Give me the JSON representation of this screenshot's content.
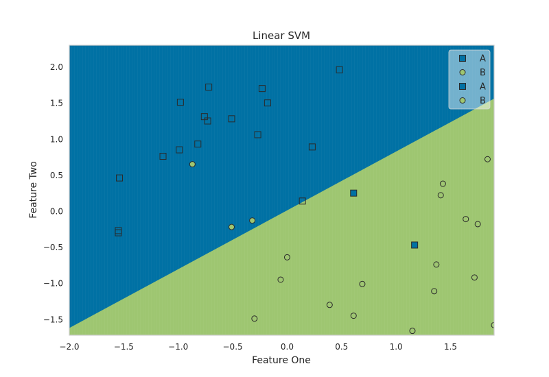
{
  "chart_data": {
    "type": "scatter",
    "title": "Linear SVM",
    "xlabel": "Feature One",
    "ylabel": "Feature Two",
    "xlim": [
      -2.0,
      1.9
    ],
    "ylim": [
      -1.72,
      2.3
    ],
    "xticks": [
      -2.0,
      -1.5,
      -1.0,
      -0.5,
      0.0,
      0.5,
      1.0,
      1.5
    ],
    "yticks": [
      -1.5,
      -1.0,
      -0.5,
      0.0,
      0.5,
      1.0,
      1.5,
      2.0
    ],
    "grid": false,
    "legend_position": "top-right",
    "colors": {
      "region_a": "#0071a4",
      "region_b": "#9ec671",
      "marker_a": "#0071a4",
      "marker_b": "#9ec671",
      "marker_edge": "#2a2a2a",
      "axes_edge": "#cccccc"
    },
    "decision_boundary": [
      [
        -2.0,
        -1.62
      ],
      [
        1.9,
        1.56
      ]
    ],
    "legend": [
      {
        "label": "A",
        "marker": "square",
        "color": "#0071a4"
      },
      {
        "label": "B",
        "marker": "circle",
        "color": "#9ec671"
      },
      {
        "label": "A",
        "marker": "square",
        "color": "#0071a4"
      },
      {
        "label": "B",
        "marker": "circle",
        "color": "#9ec671"
      }
    ],
    "series": [
      {
        "name": "A",
        "class": "A",
        "style": "outline",
        "marker": "square",
        "points": [
          [
            0.48,
            1.96
          ],
          [
            -0.72,
            1.72
          ],
          [
            -0.23,
            1.7
          ],
          [
            -0.98,
            1.51
          ],
          [
            -0.18,
            1.5
          ],
          [
            -0.76,
            1.31
          ],
          [
            -0.73,
            1.25
          ],
          [
            -0.51,
            1.28
          ],
          [
            -0.27,
            1.06
          ],
          [
            -0.82,
            0.93
          ],
          [
            0.23,
            0.89
          ],
          [
            -0.99,
            0.85
          ],
          [
            -1.14,
            0.76
          ],
          [
            -1.54,
            0.46
          ],
          [
            -1.55,
            -0.27
          ],
          [
            -1.55,
            -0.3
          ],
          [
            0.14,
            0.14
          ]
        ]
      },
      {
        "name": "B",
        "class": "B",
        "style": "outline",
        "marker": "circle",
        "points": [
          [
            1.84,
            0.72
          ],
          [
            1.43,
            0.38
          ],
          [
            1.41,
            0.22
          ],
          [
            1.64,
            -0.11
          ],
          [
            1.75,
            -0.18
          ],
          [
            0.0,
            -0.64
          ],
          [
            1.37,
            -0.74
          ],
          [
            -0.06,
            -0.95
          ],
          [
            0.69,
            -1.01
          ],
          [
            1.72,
            -0.92
          ],
          [
            1.35,
            -1.11
          ],
          [
            0.39,
            -1.3
          ],
          [
            0.61,
            -1.45
          ],
          [
            -0.3,
            -1.49
          ],
          [
            1.9,
            -1.58
          ],
          [
            1.15,
            -1.66
          ]
        ]
      },
      {
        "name": "A",
        "class": "A",
        "style": "filled",
        "marker": "square",
        "points": [
          [
            0.61,
            0.25
          ],
          [
            1.17,
            -0.47
          ]
        ]
      },
      {
        "name": "B",
        "class": "B",
        "style": "filled",
        "marker": "circle",
        "points": [
          [
            -0.87,
            0.65
          ],
          [
            -0.51,
            -0.22
          ],
          [
            -0.32,
            -0.13
          ]
        ]
      }
    ]
  }
}
